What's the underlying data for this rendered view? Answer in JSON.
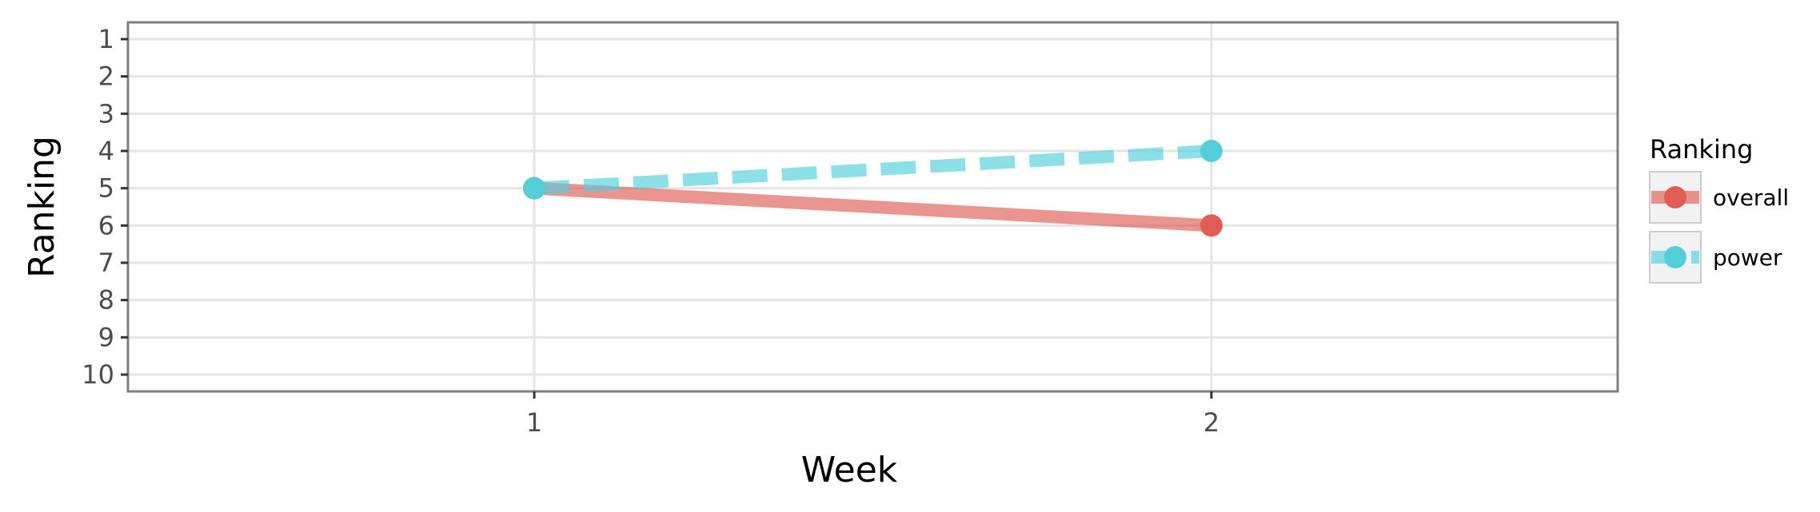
{
  "chart_data": {
    "type": "line",
    "xlabel": "Week",
    "ylabel": "Ranking",
    "x": [
      1,
      2
    ],
    "x_tick_labels": [
      "1",
      "2"
    ],
    "xlim": [
      0.4,
      2.6
    ],
    "y_tick_labels": [
      "1",
      "2",
      "3",
      "4",
      "5",
      "6",
      "7",
      "8",
      "9",
      "10"
    ],
    "ylim": [
      0.55,
      10.45
    ],
    "y_reversed": true,
    "grid": true,
    "legend_title": "Ranking",
    "legend_position": "right",
    "series": [
      {
        "name": "overall",
        "values": [
          5,
          6
        ],
        "color": "#e05c55",
        "line_style": "solid"
      },
      {
        "name": "power",
        "values": [
          5,
          4
        ],
        "color": "#52cfdb",
        "line_style": "dashed"
      }
    ]
  }
}
